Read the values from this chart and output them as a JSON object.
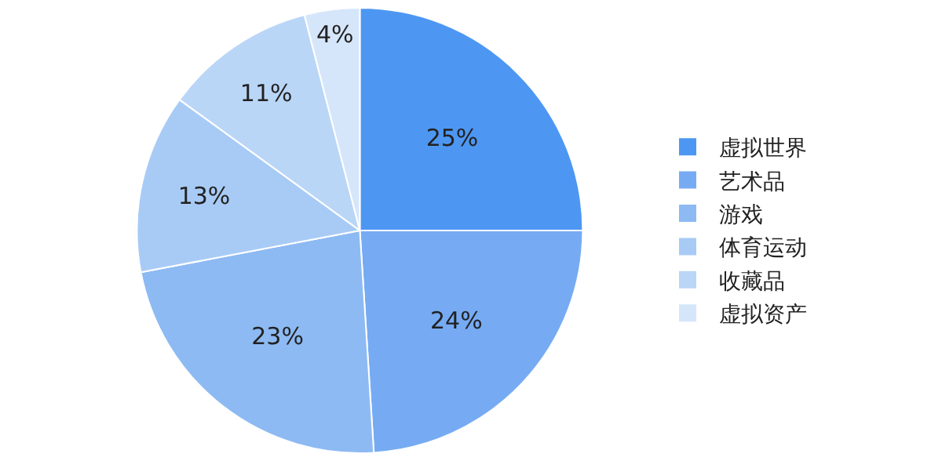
{
  "chart_data": {
    "type": "pie",
    "categories": [
      "虚拟世界",
      "艺术品",
      "游戏",
      "体育运动",
      "收藏品",
      "虚拟资产"
    ],
    "values": [
      25,
      24,
      23,
      13,
      11,
      4
    ],
    "colors": [
      "#4d97f3",
      "#76abf3",
      "#8dbaf3",
      "#a8cbf6",
      "#bad6f7",
      "#d5e6fa"
    ],
    "value_labels": [
      "25%",
      "24%",
      "23%",
      "13%",
      "11%",
      "4%"
    ],
    "legend": "right"
  }
}
